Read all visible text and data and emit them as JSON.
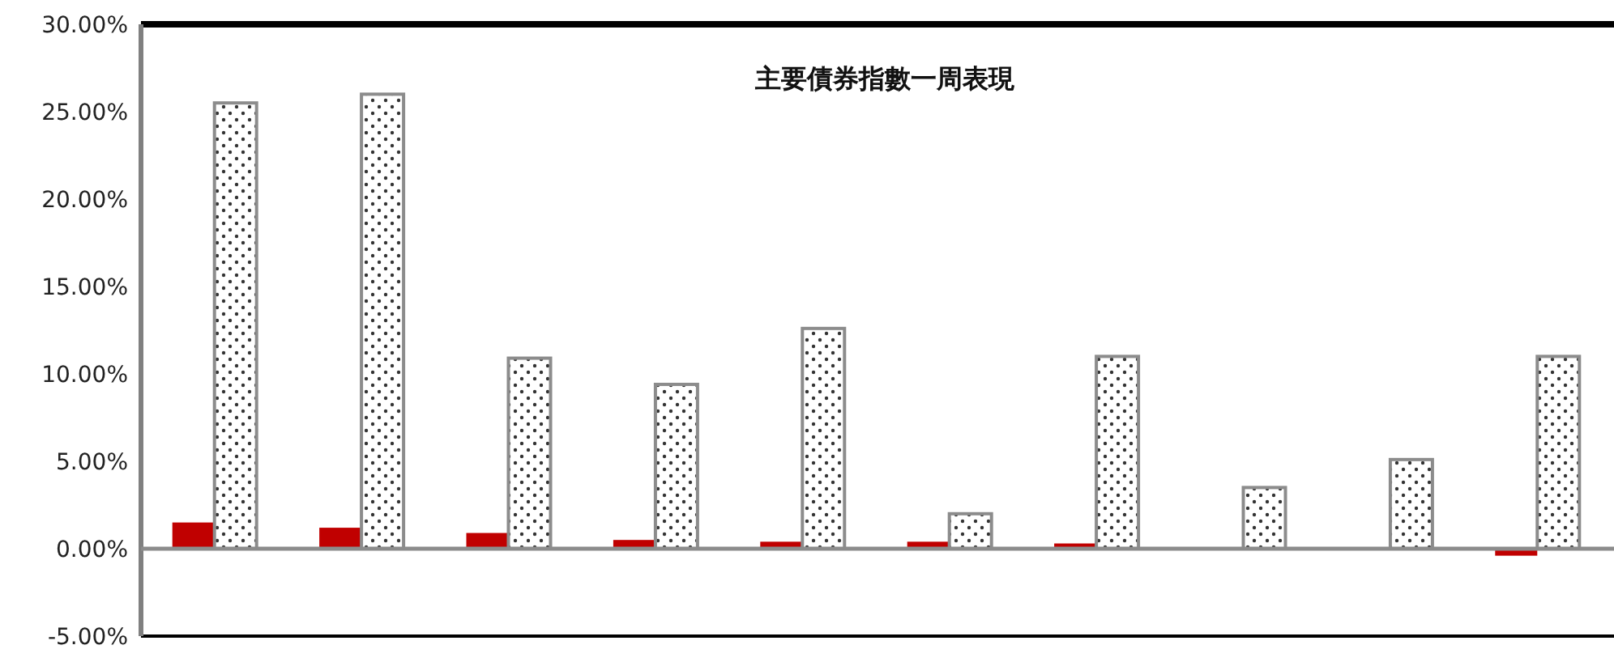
{
  "chart_data": {
    "type": "bar",
    "title": "主要債券指數一周表現",
    "categories": [
      null,
      null,
      null,
      null,
      null,
      null,
      null,
      null,
      null,
      null
    ],
    "series": [
      {
        "color": "#c00000",
        "values": [
          1.5,
          1.2,
          0.9,
          0.5,
          0.4,
          0.4,
          0.3,
          0,
          0,
          -0.4
        ]
      },
      {
        "color": "#8c8c8c",
        "values": [
          25.5,
          26.0,
          10.9,
          9.4,
          12.6,
          2.0,
          11.0,
          3.5,
          5.1,
          11.0
        ]
      }
    ],
    "ylim": [
      -5,
      30
    ],
    "yticks": [
      {
        "value": -5,
        "label": "-5.00%"
      },
      {
        "value": 0,
        "label": "0.00%"
      },
      {
        "value": 5,
        "label": "5.00%"
      },
      {
        "value": 10,
        "label": "10.00%"
      },
      {
        "value": 15,
        "label": "15.00%"
      },
      {
        "value": 20,
        "label": "20.00%"
      },
      {
        "value": 25,
        "label": "25.00%"
      },
      {
        "value": 30,
        "label": "30.00%"
      }
    ],
    "tick_labels": "y"
  }
}
